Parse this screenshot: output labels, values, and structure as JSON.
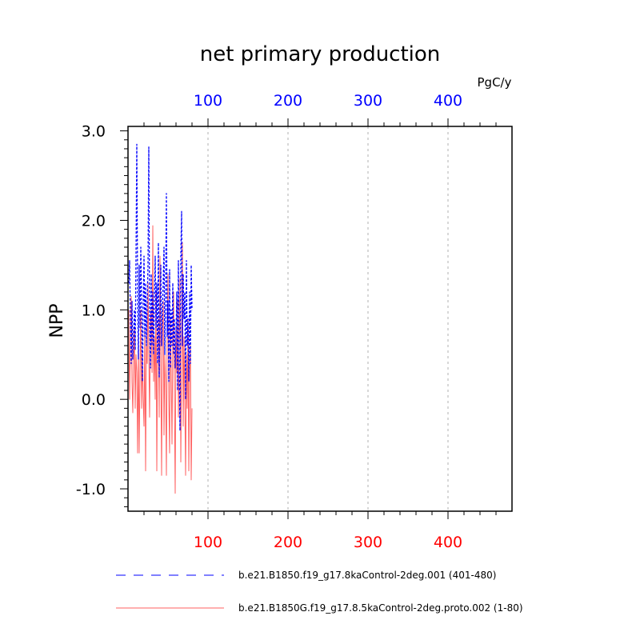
{
  "chart_data": {
    "type": "line",
    "title": "net primary production",
    "units_label": "PgC/y",
    "ylabel": "NPP",
    "xlim": [
      0,
      480
    ],
    "ylim": [
      -1.25,
      3.05
    ],
    "y_ticks": [
      -1.0,
      0.0,
      1.0,
      2.0,
      3.0
    ],
    "y_tick_labels": [
      "-1.0",
      "0.0",
      "1.0",
      "2.0",
      "3.0"
    ],
    "top_x_ticks": [
      100,
      200,
      300,
      400
    ],
    "top_x_tick_labels": [
      "100",
      "200",
      "300",
      "400"
    ],
    "top_x_color": "#0000ff",
    "bottom_x_ticks": [
      100,
      200,
      300,
      400
    ],
    "bottom_x_tick_labels": [
      "100",
      "200",
      "300",
      "400"
    ],
    "bottom_x_color": "#ff0000",
    "grid": "vertical dashed at major x ticks",
    "legend_placement": "bottom",
    "series": [
      {
        "name": "b.e21.B1850.f19_g17.8kaControl-2deg.001 (401-480)",
        "color": "#0000ff",
        "dash": "dashed",
        "x": [
          1,
          2,
          3,
          4,
          5,
          6,
          7,
          8,
          9,
          10,
          11,
          12,
          13,
          14,
          15,
          16,
          17,
          18,
          19,
          20,
          21,
          22,
          23,
          24,
          25,
          26,
          27,
          28,
          29,
          30,
          31,
          32,
          33,
          34,
          35,
          36,
          37,
          38,
          39,
          40,
          41,
          42,
          43,
          44,
          45,
          46,
          47,
          48,
          49,
          50,
          51,
          52,
          53,
          54,
          55,
          56,
          57,
          58,
          59,
          60,
          61,
          62,
          63,
          64,
          65,
          66,
          67,
          68,
          69,
          70,
          71,
          72,
          73,
          74,
          75,
          76,
          77,
          78,
          79,
          80
        ],
        "y": [
          1.3,
          1.55,
          0.9,
          0.4,
          1.1,
          0.45,
          0.75,
          1.0,
          0.55,
          1.6,
          2.85,
          1.2,
          0.45,
          1.5,
          0.8,
          1.7,
          1.1,
          0.2,
          1.0,
          1.6,
          0.7,
          1.3,
          0.6,
          1.1,
          1.5,
          2.82,
          0.9,
          0.35,
          1.4,
          0.6,
          1.2,
          0.5,
          1.1,
          1.6,
          0.8,
          1.3,
          0.4,
          1.75,
          0.25,
          0.9,
          1.5,
          0.6,
          1.0,
          1.3,
          1.7,
          0.5,
          1.2,
          2.3,
          0.7,
          1.1,
          0.2,
          1.45,
          0.35,
          1.0,
          0.6,
          1.3,
          0.5,
          0.9,
          0.35,
          0.7,
          1.2,
          0.1,
          1.55,
          0.4,
          -0.35,
          1.6,
          2.1,
          0.6,
          1.4,
          0.9,
          1.2,
          0.0,
          1.55,
          0.6,
          0.9,
          0.2,
          1.2,
          0.4,
          1.5,
          1.0
        ]
      },
      {
        "name": "b.e21.B1850G.f19_g17.8.5kaControl-2deg.proto.002 (1-80)",
        "color": "#ff6060",
        "dash": "solid",
        "x": [
          1,
          2,
          3,
          4,
          5,
          6,
          7,
          8,
          9,
          10,
          11,
          12,
          13,
          14,
          15,
          16,
          17,
          18,
          19,
          20,
          21,
          22,
          23,
          24,
          25,
          26,
          27,
          28,
          29,
          30,
          31,
          32,
          33,
          34,
          35,
          36,
          37,
          38,
          39,
          40,
          41,
          42,
          43,
          44,
          45,
          46,
          47,
          48,
          49,
          50,
          51,
          52,
          53,
          54,
          55,
          56,
          57,
          58,
          59,
          60,
          61,
          62,
          63,
          64,
          65,
          66,
          67,
          68,
          69,
          70,
          71,
          72,
          73,
          74,
          75,
          76,
          77,
          78,
          79,
          80
        ],
        "y": [
          1.0,
          0.0,
          0.6,
          1.15,
          0.2,
          -0.15,
          0.45,
          0.8,
          -0.1,
          0.5,
          0.3,
          -0.6,
          0.6,
          -0.6,
          0.3,
          1.0,
          -0.1,
          0.5,
          0.0,
          -0.3,
          0.8,
          -0.8,
          0.6,
          0.4,
          1.3,
          0.5,
          -0.2,
          0.9,
          1.0,
          0.3,
          1.94,
          0.2,
          0.7,
          0.0,
          1.2,
          -0.8,
          0.6,
          0.9,
          -0.2,
          1.6,
          0.4,
          -0.85,
          0.8,
          1.1,
          -0.4,
          0.5,
          0.2,
          -0.85,
          0.8,
          1.4,
          0.0,
          -0.6,
          0.9,
          0.3,
          -0.5,
          0.7,
          1.2,
          0.0,
          -1.05,
          0.8,
          0.3,
          1.1,
          -0.2,
          0.6,
          1.35,
          -0.7,
          0.5,
          1.75,
          -0.3,
          0.7,
          0.0,
          -0.85,
          0.5,
          -0.1,
          0.9,
          -0.8,
          0.3,
          0.6,
          -0.9,
          -0.1
        ]
      }
    ]
  }
}
